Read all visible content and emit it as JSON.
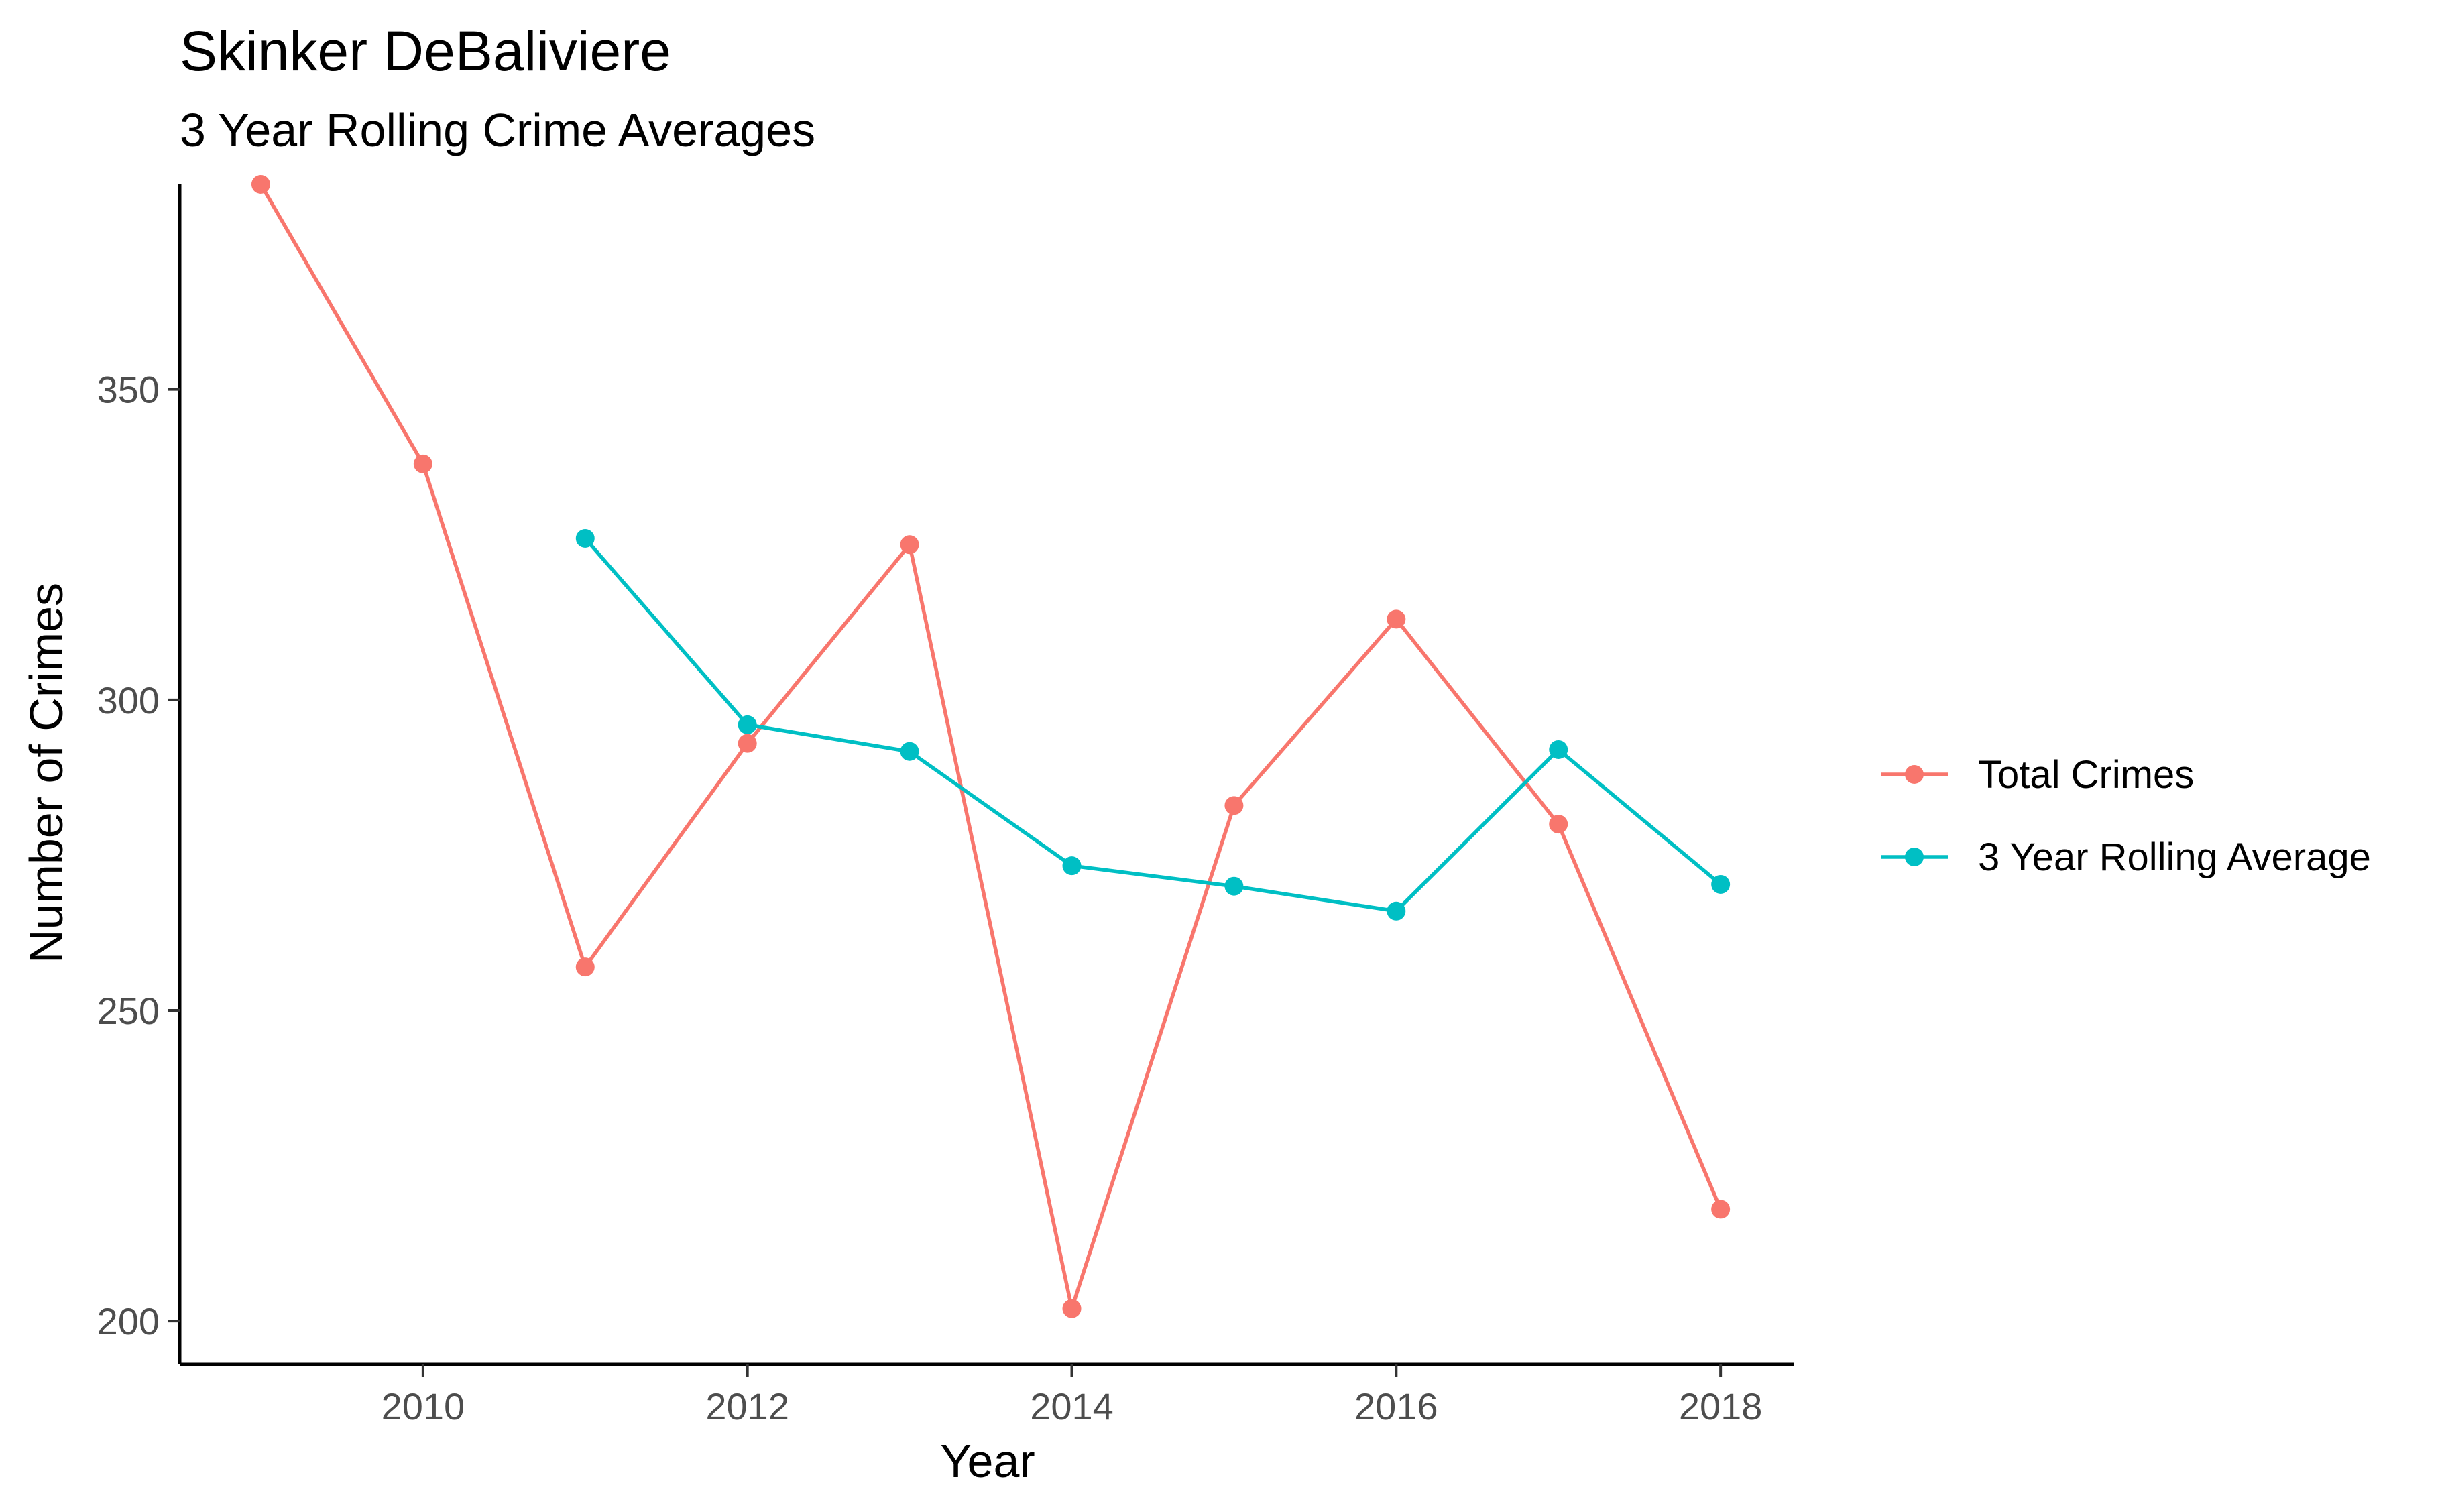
{
  "chart_data": {
    "type": "line",
    "title": "Skinker DeBaliviere",
    "subtitle": "3 Year Rolling Crime Averages",
    "xlabel": "Year",
    "ylabel": "Number of Crimes",
    "xlim": [
      2008.5,
      2018.45
    ],
    "ylim": [
      193,
      383
    ],
    "x_ticks": [
      2010,
      2012,
      2014,
      2016,
      2018
    ],
    "y_ticks": [
      200,
      250,
      300,
      350
    ],
    "grid": false,
    "legend_position": "right",
    "series": [
      {
        "name": "Total Crimes",
        "color": "#F8766D",
        "x": [
          2009,
          2010,
          2011,
          2012,
          2013,
          2014,
          2015,
          2016,
          2017,
          2018
        ],
        "values": [
          383,
          338,
          257,
          293,
          325,
          202,
          283,
          313,
          280,
          218
        ]
      },
      {
        "name": "3 Year Rolling Average",
        "color": "#00BFC4",
        "x": [
          2011,
          2012,
          2013,
          2014,
          2015,
          2016,
          2017,
          2018
        ],
        "values": [
          326,
          296,
          291.7,
          273.3,
          270,
          266,
          292,
          270.3
        ]
      }
    ]
  }
}
